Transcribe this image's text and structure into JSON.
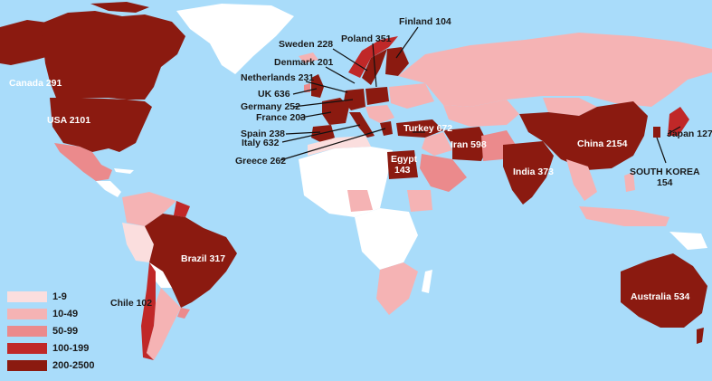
{
  "colors": {
    "ocean": "#a9dcfa",
    "no_data": "#ffffff",
    "greenland": "#ffffff",
    "bin_1_9": "#fbdede",
    "bin_10_49": "#f5b3b4",
    "bin_50_99": "#eb8a8c",
    "bin_100_199": "#c02828",
    "bin_200_2500": "#8b1a10"
  },
  "legend": [
    {
      "label": "1-9",
      "color_key": "bin_1_9"
    },
    {
      "label": "10-49",
      "color_key": "bin_10_49"
    },
    {
      "label": "50-99",
      "color_key": "bin_50_99"
    },
    {
      "label": "100-199",
      "color_key": "bin_100_199"
    },
    {
      "label": "200-2500",
      "color_key": "bin_200_2500"
    }
  ],
  "labels": {
    "canada": "Canada 291",
    "usa": "USA 2101",
    "brazil": "Brazil 317",
    "chile": "Chile 102",
    "finland": "Finland 104",
    "poland": "Poland 351",
    "sweden": "Sweden 228",
    "denmark": "Denmark 201",
    "netherlands": "Netherlands 231",
    "uk": "UK 636",
    "germany": "Germany 252",
    "france": "France 203",
    "spain": "Spain 238",
    "italy": "Italy 632",
    "greece": "Greece 262",
    "turkey": "Turkey 672",
    "iran": "Iran 598",
    "egypt_name": "Egypt",
    "egypt_value": "143",
    "india": "India 373",
    "china": "China 2154",
    "japan": "Japan 127",
    "south_korea_name": "SOUTH KOREA",
    "south_korea_value": "154",
    "australia": "Australia 534"
  }
}
